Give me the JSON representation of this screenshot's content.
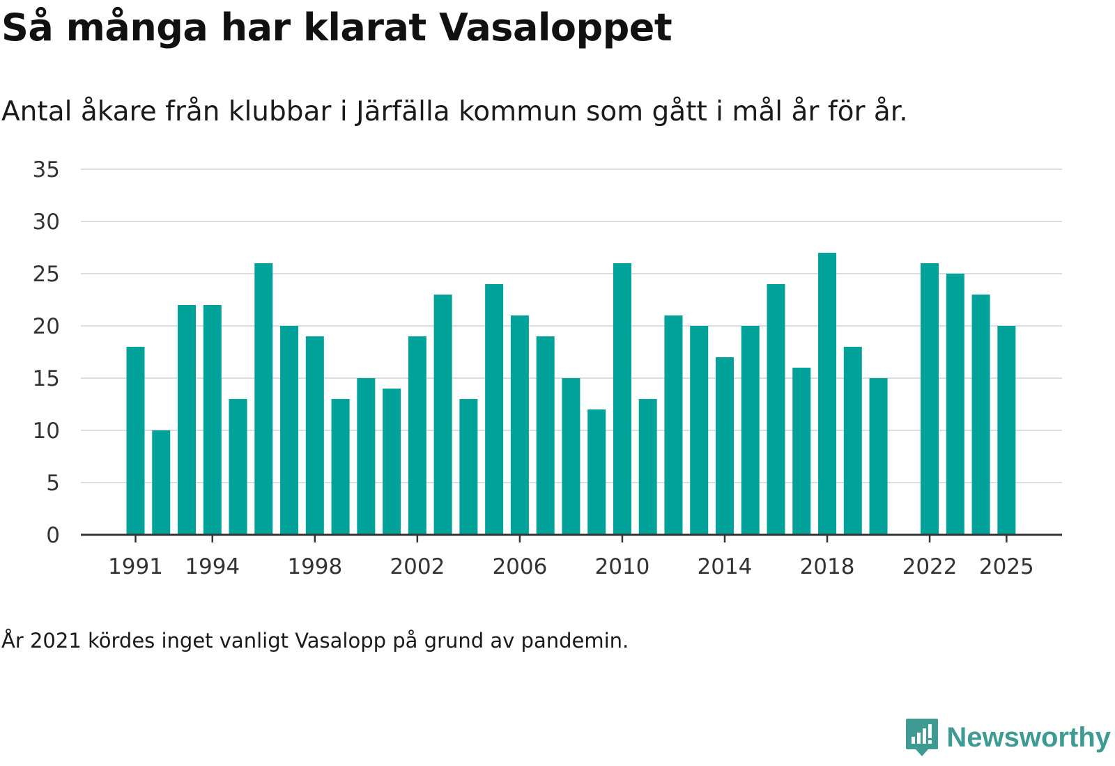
{
  "chart_data": {
    "type": "bar",
    "title": "Så många har klarat Vasaloppet",
    "subtitle": "Antal åkare från klubbar i Järfälla kommun som gått i mål år för år.",
    "note": "År 2021 kördes inget vanligt Vasalopp på grund av pandemin.",
    "xlabel": "",
    "ylabel": "",
    "ylim": [
      0,
      35
    ],
    "y_ticks": [
      0,
      5,
      10,
      15,
      20,
      25,
      30,
      35
    ],
    "x_tick_labels": [
      "1991",
      "1994",
      "1998",
      "2002",
      "2006",
      "2010",
      "2014",
      "2018",
      "2022",
      "2025"
    ],
    "grid": "horizontal",
    "bar_color": "#00a29a",
    "categories": [
      1991,
      1992,
      1993,
      1994,
      1995,
      1996,
      1997,
      1998,
      1999,
      2000,
      2001,
      2002,
      2003,
      2004,
      2005,
      2006,
      2007,
      2008,
      2009,
      2010,
      2011,
      2012,
      2013,
      2014,
      2015,
      2016,
      2017,
      2018,
      2019,
      2020,
      2021,
      2022,
      2023,
      2024,
      2025
    ],
    "values": [
      18,
      10,
      22,
      22,
      13,
      26,
      20,
      19,
      13,
      15,
      14,
      19,
      23,
      13,
      24,
      21,
      19,
      15,
      12,
      26,
      13,
      21,
      20,
      17,
      20,
      24,
      16,
      27,
      18,
      15,
      null,
      26,
      25,
      23,
      20
    ]
  },
  "branding": {
    "logo_text": "Newsworthy",
    "logo_color": "#3e9a92",
    "logo_icon": "bar-chart-bubble-icon"
  }
}
